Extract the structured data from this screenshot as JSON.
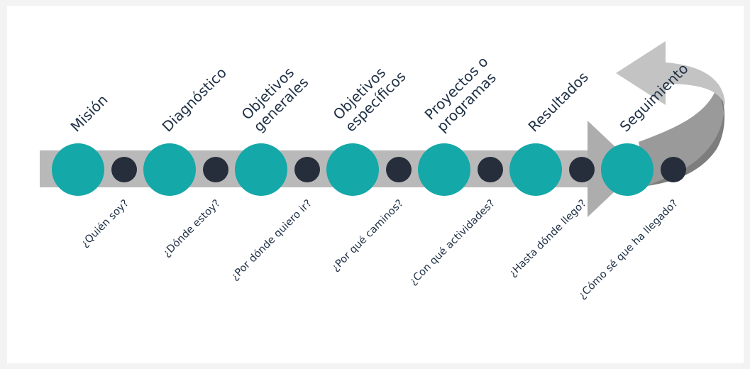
{
  "colors": {
    "arrow_body": "#b9b9b9",
    "arrow_head": "#adadad",
    "curl_dark": "#8e8e8e",
    "curl_light": "#c6c6c6",
    "teal_circle": "#14a8a8",
    "dark_circle": "#262d3b",
    "text": "#1e2f45"
  },
  "steps": [
    {
      "title_lines": [
        "Misión"
      ],
      "question": "¿Quién soy?"
    },
    {
      "title_lines": [
        "Diagnóstico"
      ],
      "question": "¿Dónde estoy?"
    },
    {
      "title_lines": [
        "Objetivos",
        "generales"
      ],
      "question": "¿Por dónde quiero ir?"
    },
    {
      "title_lines": [
        "Objetivos",
        "específicos"
      ],
      "question": "¿Por qué caminos?"
    },
    {
      "title_lines": [
        "Proyectos o",
        "programas"
      ],
      "question": "¿Con qué actividades?"
    },
    {
      "title_lines": [
        "Resultados"
      ],
      "question": "¿Hasta dónde llego?"
    },
    {
      "title_lines": [
        "Seguimiento"
      ],
      "question": "¿Cómo sé que ha llegado?"
    }
  ]
}
